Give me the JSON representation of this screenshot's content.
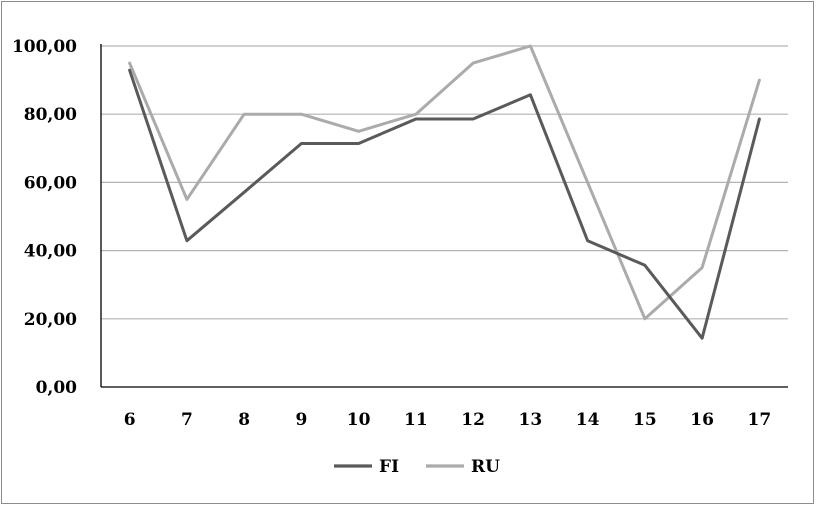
{
  "chart_data": {
    "type": "line",
    "title": "",
    "xlabel": "",
    "ylabel": "",
    "categories": [
      "6",
      "7",
      "8",
      "9",
      "10",
      "11",
      "12",
      "13",
      "14",
      "15",
      "16",
      "17"
    ],
    "y_tick_labels": [
      "0,00",
      "20,00",
      "40,00",
      "60,00",
      "80,00",
      "100,00"
    ],
    "y_ticks": [
      0,
      20,
      40,
      60,
      80,
      100
    ],
    "ylim": [
      0,
      100
    ],
    "grid": true,
    "legend_position": "bottom",
    "series": [
      {
        "name": "FI",
        "color": "#5a5a5a",
        "values": [
          92.9,
          42.9,
          57.1,
          71.4,
          71.4,
          78.6,
          78.6,
          85.7,
          42.9,
          35.7,
          14.3,
          78.6
        ]
      },
      {
        "name": "RU",
        "color": "#ababab",
        "values": [
          95,
          55,
          80,
          80,
          75,
          80,
          95,
          100,
          60,
          20,
          35,
          90
        ]
      }
    ]
  }
}
